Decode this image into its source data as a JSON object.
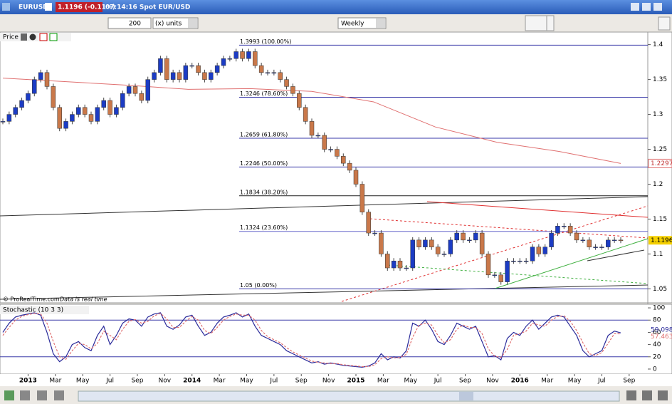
{
  "toolbar": {
    "symbol": "EURUSD",
    "quote": "1.1196 (-0.11%)",
    "time": "07:14:16 Spot EUR/USD",
    "units_count": 200,
    "units": "(x) units",
    "period": "Weekly"
  },
  "chart_data": [
    {
      "type": "candlestick",
      "title": "Price",
      "values": [
        1.29,
        1.3,
        1.31,
        1.32,
        1.33,
        1.35,
        1.36,
        1.34,
        1.31,
        1.28,
        1.29,
        1.3,
        1.31,
        1.3,
        1.29,
        1.31,
        1.32,
        1.3,
        1.31,
        1.33,
        1.34,
        1.33,
        1.32,
        1.35,
        1.36,
        1.38,
        1.35,
        1.36,
        1.35,
        1.37,
        1.37,
        1.36,
        1.35,
        1.36,
        1.37,
        1.38,
        1.38,
        1.39,
        1.38,
        1.39,
        1.37,
        1.36,
        1.36,
        1.36,
        1.35,
        1.34,
        1.33,
        1.31,
        1.29,
        1.27,
        1.27,
        1.25,
        1.25,
        1.24,
        1.23,
        1.22,
        1.2,
        1.16,
        1.13,
        1.13,
        1.1,
        1.08,
        1.09,
        1.08,
        1.08,
        1.12,
        1.11,
        1.12,
        1.11,
        1.1,
        1.1,
        1.12,
        1.13,
        1.12,
        1.12,
        1.13,
        1.1,
        1.07,
        1.07,
        1.06,
        1.09,
        1.09,
        1.09,
        1.09,
        1.11,
        1.1,
        1.11,
        1.13,
        1.14,
        1.14,
        1.13,
        1.12,
        1.12,
        1.11,
        1.11,
        1.11,
        1.12,
        1.12,
        1.1196
      ],
      "up_color": "#1c3cc4",
      "down_color": "#c9784a",
      "ma": {
        "color": "#e07070",
        "values": [
          1.352,
          1.347,
          1.342,
          1.336,
          1.337,
          1.333,
          1.318,
          1.282,
          1.26,
          1.247,
          1.2297
        ]
      },
      "ylim": [
        1.03,
        1.417
      ],
      "yticks": [
        1.05,
        1.1,
        1.15,
        1.2,
        1.25,
        1.3,
        1.35,
        1.4
      ],
      "levels": [
        {
          "label": "1.3993 (100.00%)",
          "value": 1.3993,
          "color": "#3a3aa8"
        },
        {
          "label": "1.3246 (78.60%)",
          "value": 1.3246,
          "color": "#3a3aa8"
        },
        {
          "label": "1.2659 (61.80%)",
          "value": 1.2659,
          "color": "#3a3aa8"
        },
        {
          "label": "1.2246 (50.00%)",
          "value": 1.2246,
          "color": "#3a3aa8"
        },
        {
          "label": "1.1834 (38.20%)",
          "value": 1.1834,
          "color": "#222222"
        },
        {
          "label": "1.1324 (23.60%)",
          "value": 1.1324,
          "color": "#6666cc"
        },
        {
          "label": "1.05 (0.00%)",
          "value": 1.05,
          "color": "#3a3aa8"
        }
      ],
      "x_labels": [
        "2013",
        "Mar",
        "May",
        "Jul",
        "Sep",
        "Nov",
        "2014",
        "Mar",
        "May",
        "Jul",
        "Sep",
        "Nov",
        "2015",
        "Mar",
        "May",
        "Jul",
        "Sep",
        "Nov",
        "2016",
        "Mar",
        "May",
        "Jul",
        "Sep"
      ],
      "credit": "© ProRealTime.com",
      "credit_note": "Data is real time"
    },
    {
      "type": "line",
      "title": "Stochastic (10 3 3)",
      "series": [
        {
          "color": "#2a2a9a",
          "values": [
            60,
            75,
            85,
            88,
            90,
            92,
            88,
            60,
            25,
            12,
            20,
            40,
            45,
            35,
            30,
            55,
            70,
            40,
            55,
            75,
            82,
            80,
            70,
            85,
            90,
            92,
            70,
            65,
            72,
            85,
            88,
            70,
            55,
            60,
            75,
            85,
            88,
            92,
            85,
            90,
            70,
            55,
            50,
            45,
            40,
            30,
            25,
            20,
            15,
            10,
            12,
            8,
            10,
            8,
            6,
            5,
            4,
            3,
            5,
            10,
            25,
            15,
            20,
            18,
            30,
            75,
            70,
            80,
            65,
            45,
            40,
            55,
            75,
            70,
            65,
            70,
            45,
            20,
            22,
            15,
            50,
            60,
            55,
            70,
            80,
            65,
            75,
            85,
            88,
            85,
            70,
            55,
            30,
            20,
            25,
            30,
            55,
            62,
            59.098
          ]
        },
        {
          "color": "#e07070",
          "values": [
            55,
            68,
            80,
            86,
            89,
            91,
            90,
            75,
            45,
            20,
            16,
            30,
            42,
            40,
            33,
            42,
            62,
            55,
            48,
            65,
            78,
            81,
            75,
            78,
            87,
            91,
            82,
            68,
            68,
            78,
            86,
            80,
            63,
            58,
            68,
            80,
            86,
            90,
            88,
            88,
            80,
            63,
            53,
            48,
            43,
            35,
            28,
            23,
            18,
            13,
            11,
            10,
            9,
            9,
            7,
            6,
            5,
            4,
            4,
            7,
            17,
            20,
            18,
            19,
            24,
            52,
            72,
            75,
            72,
            55,
            43,
            48,
            65,
            72,
            68,
            68,
            58,
            33,
            21,
            19,
            32,
            55,
            58,
            62,
            75,
            72,
            70,
            80,
            86,
            87,
            78,
            63,
            43,
            25,
            22,
            27,
            42,
            58,
            57.463
          ]
        }
      ],
      "ylim": [
        -8.2,
        105.9
      ],
      "yticks": [
        0,
        20,
        40,
        60,
        80,
        100
      ],
      "levels": [
        20,
        80
      ]
    }
  ]
}
